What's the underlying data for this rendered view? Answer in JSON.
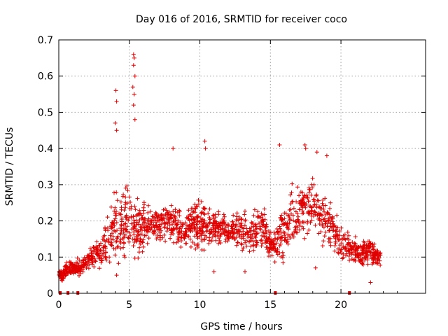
{
  "chart_data": {
    "type": "scatter",
    "title": "Day 016 of 2016, SRMTID for receiver coco",
    "xlabel": "GPS time / hours",
    "ylabel": "SRMTID / TECUs",
    "xlim": [
      0,
      26
    ],
    "ylim": [
      0,
      0.7
    ],
    "xticks": [
      0,
      5,
      10,
      15,
      20
    ],
    "xtick_labels": [
      "0",
      "5",
      "10",
      "15",
      "20"
    ],
    "yticks": [
      0,
      0.1,
      0.2,
      0.3,
      0.4,
      0.5,
      0.6,
      0.7
    ],
    "ytick_labels": [
      "0",
      "0.1",
      "0.2",
      "0.3",
      "0.4",
      "0.5",
      "0.6",
      "0.7"
    ],
    "grid": true,
    "marker": "+",
    "color": "#e00000",
    "series": [
      {
        "name": "SRMTID",
        "profile": {
          "x": [
            0.0,
            0.3,
            0.6,
            1.0,
            1.5,
            2.0,
            2.5,
            3.0,
            3.5,
            4.0,
            4.5,
            5.0,
            5.5,
            6.0,
            6.5,
            7.0,
            7.5,
            8.0,
            8.5,
            9.0,
            9.5,
            10.0,
            10.5,
            11.0,
            11.5,
            12.0,
            12.5,
            13.0,
            13.5,
            14.0,
            14.5,
            15.0,
            15.5,
            16.0,
            16.5,
            17.0,
            17.5,
            18.0,
            18.5,
            19.0,
            19.5,
            20.0,
            20.5,
            21.0,
            21.5,
            22.0,
            22.5,
            22.8
          ],
          "median": [
            0.05,
            0.05,
            0.07,
            0.07,
            0.07,
            0.09,
            0.11,
            0.11,
            0.16,
            0.18,
            0.19,
            0.19,
            0.18,
            0.18,
            0.19,
            0.19,
            0.2,
            0.2,
            0.18,
            0.18,
            0.2,
            0.18,
            0.19,
            0.18,
            0.18,
            0.17,
            0.18,
            0.17,
            0.16,
            0.18,
            0.18,
            0.13,
            0.14,
            0.17,
            0.22,
            0.2,
            0.25,
            0.25,
            0.21,
            0.2,
            0.17,
            0.14,
            0.13,
            0.12,
            0.11,
            0.12,
            0.1,
            0.1
          ],
          "spread": [
            0.02,
            0.02,
            0.03,
            0.03,
            0.03,
            0.03,
            0.05,
            0.05,
            0.1,
            0.12,
            0.12,
            0.15,
            0.12,
            0.09,
            0.06,
            0.06,
            0.07,
            0.07,
            0.06,
            0.06,
            0.08,
            0.1,
            0.08,
            0.06,
            0.06,
            0.05,
            0.06,
            0.07,
            0.08,
            0.1,
            0.09,
            0.05,
            0.07,
            0.1,
            0.11,
            0.1,
            0.11,
            0.1,
            0.1,
            0.09,
            0.08,
            0.06,
            0.06,
            0.05,
            0.05,
            0.05,
            0.03,
            0.03
          ]
        },
        "peaks": [
          {
            "x": 4.05,
            "y": 0.56
          },
          {
            "x": 4.1,
            "y": 0.53
          },
          {
            "x": 4.0,
            "y": 0.47
          },
          {
            "x": 4.1,
            "y": 0.45
          },
          {
            "x": 5.3,
            "y": 0.66
          },
          {
            "x": 5.35,
            "y": 0.65
          },
          {
            "x": 5.3,
            "y": 0.63
          },
          {
            "x": 5.4,
            "y": 0.6
          },
          {
            "x": 5.25,
            "y": 0.57
          },
          {
            "x": 5.35,
            "y": 0.55
          },
          {
            "x": 5.3,
            "y": 0.52
          },
          {
            "x": 5.4,
            "y": 0.48
          },
          {
            "x": 8.1,
            "y": 0.4
          },
          {
            "x": 10.35,
            "y": 0.42
          },
          {
            "x": 10.4,
            "y": 0.4
          },
          {
            "x": 15.65,
            "y": 0.41
          },
          {
            "x": 17.45,
            "y": 0.41
          },
          {
            "x": 17.5,
            "y": 0.4
          },
          {
            "x": 18.3,
            "y": 0.39
          },
          {
            "x": 19.0,
            "y": 0.38
          }
        ],
        "troughs": [
          {
            "x": 0.2,
            "y": 0.04
          },
          {
            "x": 4.1,
            "y": 0.05
          },
          {
            "x": 11.0,
            "y": 0.06
          },
          {
            "x": 13.2,
            "y": 0.06
          },
          {
            "x": 18.2,
            "y": 0.07
          },
          {
            "x": 22.1,
            "y": 0.03
          }
        ],
        "zeros_x": [
          0.1,
          0.65,
          1.35,
          15.35,
          20.6
        ]
      }
    ]
  }
}
